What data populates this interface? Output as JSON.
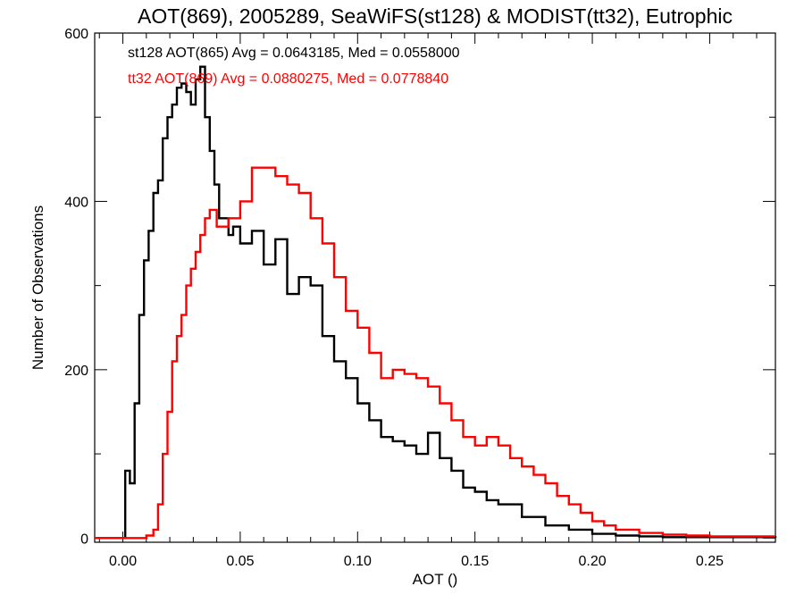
{
  "chart_data": {
    "type": "line",
    "title": "AOT(869), 2005289, SeaWiFS(st128) & MODIST(tt32), Eutrophic",
    "xlabel": "AOT ()",
    "ylabel": "Number of Observations",
    "xlim": [
      -0.012,
      0.278
    ],
    "ylim": [
      -5,
      600
    ],
    "x_ticks": [
      0.0,
      0.05,
      0.1,
      0.15,
      0.2,
      0.25
    ],
    "x_tick_labels": [
      "0.00",
      "0.05",
      "0.10",
      "0.15",
      "0.20",
      "0.25"
    ],
    "y_ticks": [
      0,
      200,
      400,
      600
    ],
    "y_tick_labels": [
      "0",
      "200",
      "400",
      "600"
    ],
    "annotations": [
      {
        "text": "st128 AOT(865) Avg = 0.0643185, Med = 0.0558000",
        "color": "#000000"
      },
      {
        "text": "tt32 AOT(869) Avg = 0.0880275, Med = 0.0778840",
        "color": "#ff0000"
      }
    ],
    "series": [
      {
        "color": "#000000",
        "style": "step",
        "x": [
          -0.012,
          0.0,
          0.001,
          0.003,
          0.005,
          0.007,
          0.009,
          0.011,
          0.013,
          0.015,
          0.017,
          0.019,
          0.021,
          0.023,
          0.025,
          0.027,
          0.029,
          0.031,
          0.033,
          0.035,
          0.037,
          0.039,
          0.041,
          0.043,
          0.045,
          0.047,
          0.05,
          0.055,
          0.06,
          0.065,
          0.07,
          0.075,
          0.08,
          0.085,
          0.09,
          0.095,
          0.1,
          0.105,
          0.11,
          0.115,
          0.12,
          0.125,
          0.13,
          0.135,
          0.14,
          0.145,
          0.15,
          0.155,
          0.16,
          0.17,
          0.18,
          0.19,
          0.2,
          0.21,
          0.22,
          0.23,
          0.278
        ],
        "y": [
          0,
          0,
          80,
          65,
          160,
          265,
          330,
          365,
          410,
          425,
          475,
          500,
          515,
          535,
          540,
          530,
          515,
          545,
          560,
          500,
          460,
          420,
          380,
          380,
          360,
          370,
          350,
          365,
          325,
          355,
          290,
          310,
          300,
          240,
          210,
          190,
          160,
          140,
          120,
          115,
          110,
          100,
          125,
          95,
          80,
          60,
          55,
          45,
          40,
          25,
          15,
          10,
          5,
          3,
          2,
          1,
          0
        ]
      },
      {
        "color": "#ff0000",
        "style": "step",
        "x": [
          -0.012,
          0.005,
          0.01,
          0.013,
          0.015,
          0.017,
          0.019,
          0.021,
          0.023,
          0.025,
          0.027,
          0.029,
          0.031,
          0.033,
          0.035,
          0.037,
          0.04,
          0.045,
          0.05,
          0.055,
          0.06,
          0.065,
          0.07,
          0.075,
          0.08,
          0.085,
          0.09,
          0.095,
          0.1,
          0.105,
          0.11,
          0.115,
          0.12,
          0.125,
          0.13,
          0.135,
          0.14,
          0.145,
          0.15,
          0.155,
          0.16,
          0.165,
          0.17,
          0.175,
          0.18,
          0.185,
          0.19,
          0.195,
          0.2,
          0.205,
          0.21,
          0.22,
          0.23,
          0.24,
          0.25,
          0.278
        ],
        "y": [
          0,
          0,
          3,
          10,
          40,
          100,
          150,
          210,
          240,
          265,
          300,
          320,
          340,
          360,
          380,
          390,
          370,
          380,
          400,
          440,
          440,
          430,
          420,
          410,
          380,
          350,
          310,
          270,
          250,
          220,
          190,
          200,
          195,
          190,
          180,
          160,
          140,
          120,
          110,
          120,
          110,
          95,
          85,
          75,
          65,
          50,
          40,
          30,
          20,
          15,
          10,
          6,
          4,
          3,
          2,
          2
        ]
      }
    ]
  }
}
